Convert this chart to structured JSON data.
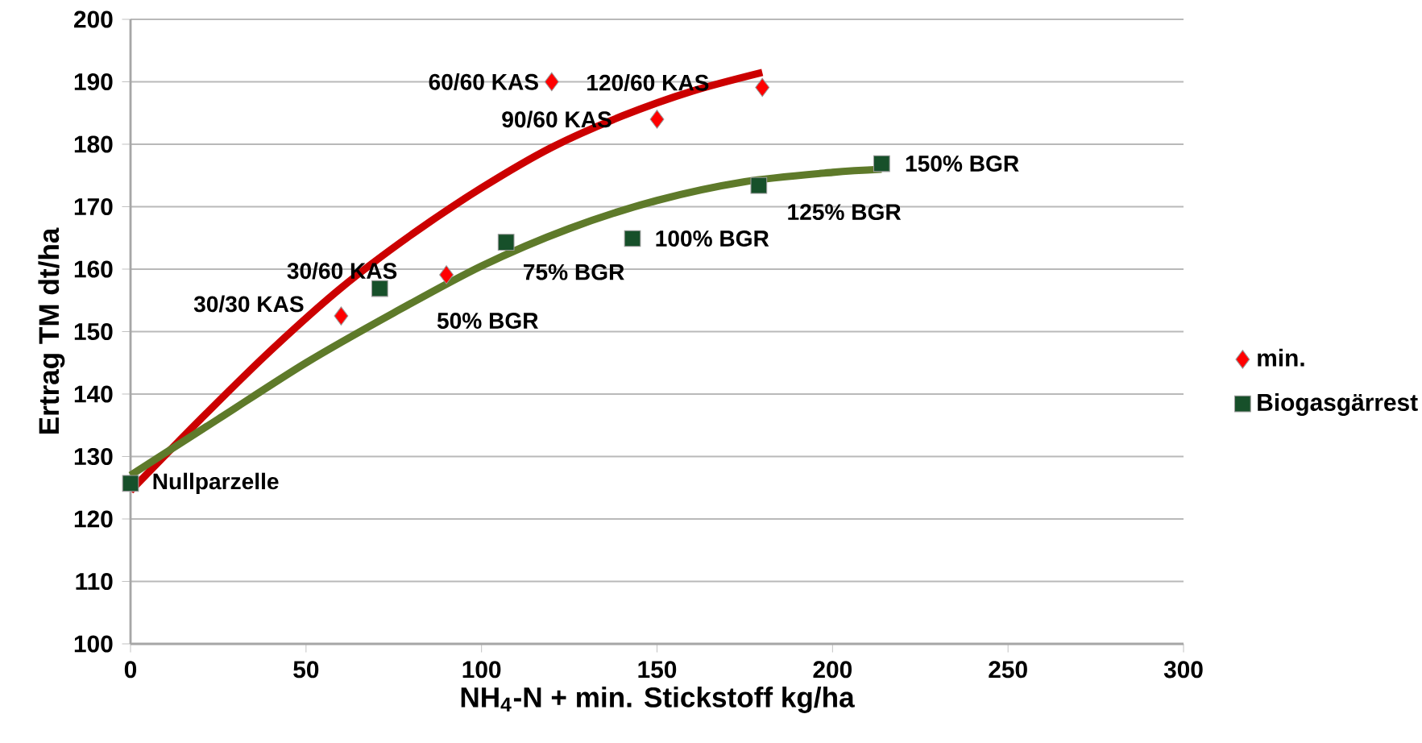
{
  "chart_data": {
    "type": "scatter",
    "xlabel": "NH$_{4}$-N + min. Stickstoff kg/ha",
    "ylabel": "Ertrag TM dt/ha",
    "xlim": [
      0,
      300
    ],
    "ylim": [
      100,
      200
    ],
    "xticks": [
      0,
      50,
      100,
      150,
      200,
      250,
      300
    ],
    "yticks": [
      100,
      110,
      120,
      130,
      140,
      150,
      160,
      170,
      180,
      190,
      200
    ],
    "grid": "y",
    "legend": "right",
    "series": [
      {
        "name": "min.",
        "marker": "diamond",
        "color": "#ff0000",
        "x": [
          60,
          90,
          120,
          150,
          180
        ],
        "values": [
          152.5,
          159.1,
          190,
          184,
          189.1
        ]
      },
      {
        "name": "Biogasgärrest",
        "marker": "square",
        "color": "#17502a",
        "x": [
          0,
          71,
          107,
          143,
          179,
          214
        ],
        "values": [
          125.7,
          156.9,
          164.3,
          164.9,
          173.4,
          176.9
        ]
      },
      {
        "type": "line",
        "marker": "none",
        "line_style": "solid",
        "color": "#cc0000",
        "x": [
          0,
          20,
          40,
          60,
          80,
          100,
          120,
          140,
          160,
          180
        ],
        "values": [
          124.5,
          136,
          147,
          157,
          165.5,
          173,
          179.5,
          184.5,
          188.5,
          191.5
        ]
      },
      {
        "type": "line",
        "marker": "none",
        "line_style": "solid",
        "color": "#5e7a2a",
        "x": [
          0,
          25,
          50,
          75,
          100,
          125,
          150,
          175,
          200,
          214
        ],
        "values": [
          127,
          136,
          145,
          153,
          160.5,
          166.5,
          171,
          174,
          175.5,
          176
        ]
      }
    ],
    "annotations": [
      {
        "text": "Nullparzelle",
        "x": 0,
        "y": 125.7
      },
      {
        "text": "30/30 KAS",
        "x": 60,
        "y": 152.5
      },
      {
        "text": "30/60 KAS",
        "x": 90,
        "y": 159.1
      },
      {
        "text": "60/60 KAS",
        "x": 120,
        "y": 190
      },
      {
        "text": "90/60 KAS",
        "x": 150,
        "y": 184
      },
      {
        "text": "120/60 KAS",
        "x": 180,
        "y": 189.1
      },
      {
        "text": "50% BGR",
        "x": 71,
        "y": 156.9
      },
      {
        "text": "75% BGR",
        "x": 107,
        "y": 164.3
      },
      {
        "text": "100% BGR",
        "x": 143,
        "y": 164.9
      },
      {
        "text": "125% BGR",
        "x": 179,
        "y": 173.4
      },
      {
        "text": "150% BGR",
        "x": 214,
        "y": 176.9
      }
    ]
  }
}
